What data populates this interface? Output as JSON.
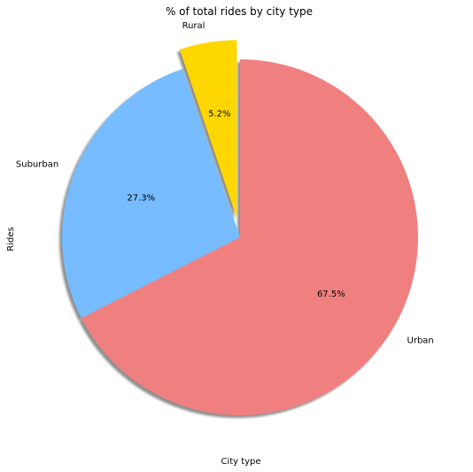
{
  "chart_data": {
    "type": "pie",
    "title": "% of total rides by city type",
    "xlabel": "City type",
    "ylabel": "Rides",
    "slices": [
      {
        "label": "Rural",
        "value": 5.2,
        "pct_label": "5.2%",
        "color": "#FFD700",
        "explode": true
      },
      {
        "label": "Suburban",
        "value": 27.3,
        "pct_label": "27.3%",
        "color": "#77BCFF",
        "explode": false
      },
      {
        "label": "Urban",
        "value": 67.5,
        "pct_label": "67.5%",
        "color": "#F08080",
        "explode": false
      }
    ],
    "shadow": true,
    "start_angle_deg": 90,
    "direction": "counterclockwise",
    "legend": "none"
  }
}
